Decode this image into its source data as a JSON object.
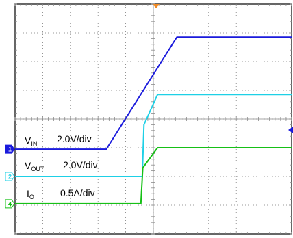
{
  "chart_data": {
    "type": "line",
    "title": "",
    "xlabel": "",
    "ylabel": "",
    "grid": true,
    "divisions": {
      "x": 10,
      "y": 8
    },
    "x_range": [
      0,
      10
    ],
    "y_range": [
      0,
      8
    ],
    "series": [
      {
        "key": "vin",
        "color": "#1a1adc",
        "channel_marker": "1",
        "label_main": "V",
        "label_sub": "IN",
        "scale": "2.0V/div",
        "points": [
          [
            0,
            2.95
          ],
          [
            3.3,
            2.95
          ],
          [
            5.85,
            6.85
          ],
          [
            10,
            6.85
          ]
        ]
      },
      {
        "key": "vout",
        "color": "#1ed0e6",
        "channel_marker": "2",
        "label_main": "V",
        "label_sub": "OUT",
        "scale": "2.0V/div",
        "points": [
          [
            0,
            2.0
          ],
          [
            4.6,
            2.0
          ],
          [
            4.66,
            3.8
          ],
          [
            5.15,
            4.85
          ],
          [
            10,
            4.85
          ]
        ]
      },
      {
        "key": "io",
        "color": "#16c016",
        "channel_marker": "4",
        "label_main": "I",
        "label_sub": "O",
        "scale": "0.5A/div",
        "points": [
          [
            0,
            1.05
          ],
          [
            4.55,
            1.05
          ],
          [
            4.62,
            2.3
          ],
          [
            5.15,
            3.0
          ],
          [
            10,
            3.0
          ]
        ]
      }
    ]
  }
}
